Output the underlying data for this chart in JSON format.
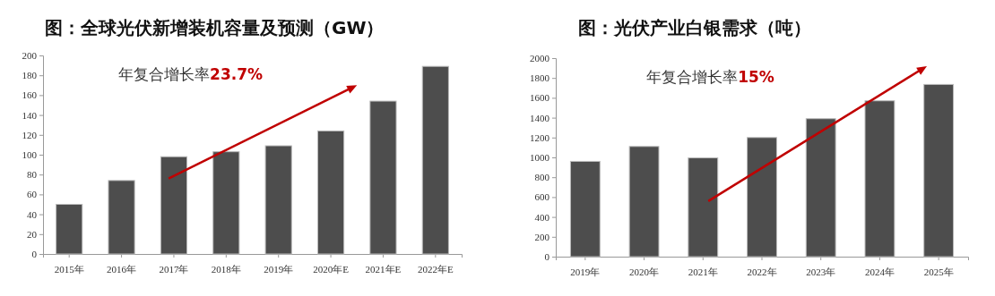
{
  "chart_data": [
    {
      "type": "bar",
      "title": "图：全球光伏新增装机容量及预测（GW）",
      "categories": [
        "2015年",
        "2016年",
        "2017年",
        "2018年",
        "2019年",
        "2020年E",
        "2021年E",
        "2022年E"
      ],
      "values": [
        50,
        74,
        98,
        103,
        109,
        124,
        154,
        189
      ],
      "color": "#4d4d4d",
      "ylim": [
        0,
        200
      ],
      "yticks": [
        0,
        20,
        40,
        60,
        80,
        100,
        120,
        140,
        160,
        180,
        200
      ],
      "grid": false,
      "annotations": [
        "年复合增长率23.7%"
      ]
    },
    {
      "type": "bar",
      "title": "图：光伏产业白银需求（吨）",
      "categories": [
        "2019年",
        "2020年",
        "2021年",
        "2022年",
        "2023年",
        "2024年",
        "2025年"
      ],
      "values": [
        960,
        1110,
        995,
        1200,
        1390,
        1570,
        1735
      ],
      "color": "#4d4d4d",
      "ylim": [
        0,
        2000
      ],
      "yticks": [
        0,
        200,
        400,
        600,
        800,
        1000,
        1200,
        1400,
        1600,
        1800,
        2000
      ],
      "grid": false,
      "annotations": [
        "年复合增长率15%"
      ]
    }
  ]
}
